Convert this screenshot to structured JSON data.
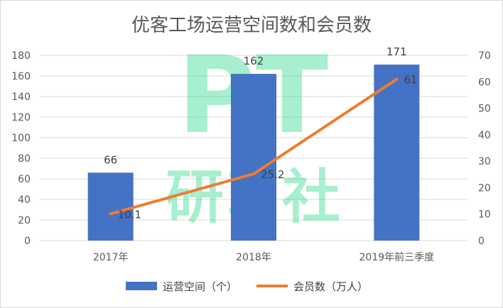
{
  "chart_data": {
    "type": "bar",
    "title": "优客工场运营空间数和会员数",
    "categories": [
      "2017年",
      "2018年",
      "2019年前三季度"
    ],
    "series": [
      {
        "name": "运营空间（个）",
        "kind": "bar",
        "axis": "left",
        "values": [
          66,
          162,
          171
        ],
        "color": "#4472c4"
      },
      {
        "name": "会员数（万人）",
        "kind": "line",
        "axis": "right",
        "values": [
          10.1,
          25.2,
          61
        ],
        "color": "#ed7d31"
      }
    ],
    "y_left": {
      "min": 0,
      "max": 180,
      "step": 20
    },
    "y_right": {
      "min": 0,
      "max": 70,
      "step": 10
    },
    "grid": true,
    "legend": "bottom"
  },
  "watermark": {
    "line1": "PT",
    "line2": "研习社"
  }
}
